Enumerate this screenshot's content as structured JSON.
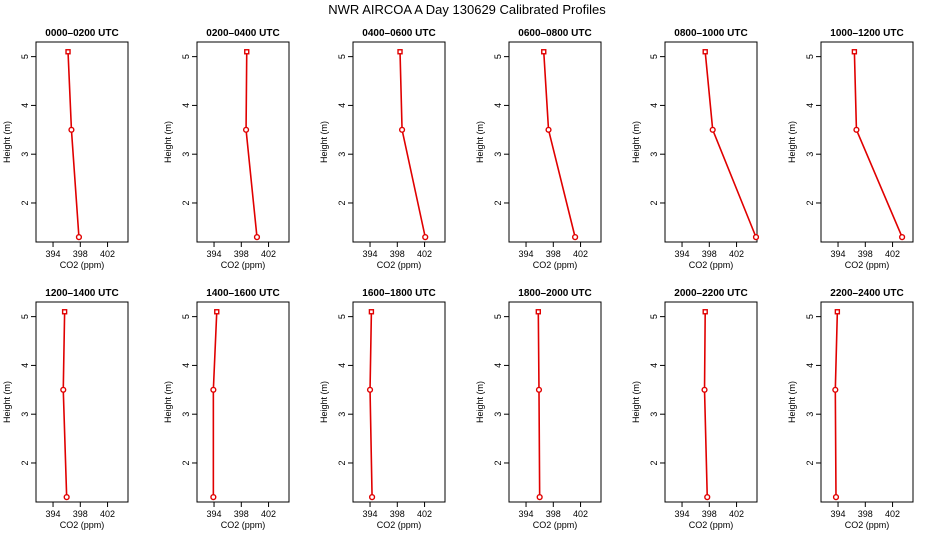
{
  "title": "NWR AIRCOA A  Day 130629  Calibrated Profiles",
  "chart_data": [
    {
      "type": "line",
      "title": "0000–0200 UTC",
      "xlabel": "CO2 (ppm)",
      "ylabel": "Height (m)",
      "xlim": [
        391.5,
        405
      ],
      "ylim": [
        1.2,
        5.3
      ],
      "xticks": [
        394,
        398,
        402
      ],
      "yticks": [
        2,
        3,
        4,
        5
      ],
      "series": [
        {
          "x": [
            396.2,
            396.7,
            397.8
          ],
          "y": [
            5.1,
            3.5,
            1.3
          ]
        }
      ]
    },
    {
      "type": "line",
      "title": "0200–0400 UTC",
      "xlabel": "CO2 (ppm)",
      "ylabel": "Height (m)",
      "xlim": [
        391.5,
        405
      ],
      "ylim": [
        1.2,
        5.3
      ],
      "xticks": [
        394,
        398,
        402
      ],
      "yticks": [
        2,
        3,
        4,
        5
      ],
      "series": [
        {
          "x": [
            398.8,
            398.7,
            400.3
          ],
          "y": [
            5.1,
            3.5,
            1.3
          ]
        }
      ]
    },
    {
      "type": "line",
      "title": "0400–0600 UTC",
      "xlabel": "CO2 (ppm)",
      "ylabel": "Height (m)",
      "xlim": [
        391.5,
        405
      ],
      "ylim": [
        1.2,
        5.3
      ],
      "xticks": [
        394,
        398,
        402
      ],
      "yticks": [
        2,
        3,
        4,
        5
      ],
      "series": [
        {
          "x": [
            398.4,
            398.7,
            402.1
          ],
          "y": [
            5.1,
            3.5,
            1.3
          ]
        }
      ]
    },
    {
      "type": "line",
      "title": "0600–0800 UTC",
      "xlabel": "CO2 (ppm)",
      "ylabel": "Height (m)",
      "xlim": [
        391.5,
        405
      ],
      "ylim": [
        1.2,
        5.3
      ],
      "xticks": [
        394,
        398,
        402
      ],
      "yticks": [
        2,
        3,
        4,
        5
      ],
      "series": [
        {
          "x": [
            396.6,
            397.3,
            401.2
          ],
          "y": [
            5.1,
            3.5,
            1.3
          ]
        }
      ]
    },
    {
      "type": "line",
      "title": "0800–1000 UTC",
      "xlabel": "CO2 (ppm)",
      "ylabel": "Height (m)",
      "xlim": [
        391.5,
        405
      ],
      "ylim": [
        1.2,
        5.3
      ],
      "xticks": [
        394,
        398,
        402
      ],
      "yticks": [
        2,
        3,
        4,
        5
      ],
      "series": [
        {
          "x": [
            397.4,
            398.5,
            405.2
          ],
          "y": [
            5.1,
            3.5,
            1.3
          ]
        }
      ]
    },
    {
      "type": "line",
      "title": "1000–1200 UTC",
      "xlabel": "CO2 (ppm)",
      "ylabel": "Height (m)",
      "xlim": [
        391.5,
        405
      ],
      "ylim": [
        1.2,
        5.3
      ],
      "xticks": [
        394,
        398,
        402
      ],
      "yticks": [
        2,
        3,
        4,
        5
      ],
      "series": [
        {
          "x": [
            396.4,
            396.7,
            403.4
          ],
          "y": [
            5.1,
            3.5,
            1.3
          ]
        }
      ]
    },
    {
      "type": "line",
      "title": "1200–1400 UTC",
      "xlabel": "CO2 (ppm)",
      "ylabel": "Height (m)",
      "xlim": [
        391.5,
        405
      ],
      "ylim": [
        1.2,
        5.3
      ],
      "xticks": [
        394,
        398,
        402
      ],
      "yticks": [
        2,
        3,
        4,
        5
      ],
      "series": [
        {
          "x": [
            395.7,
            395.5,
            396.0
          ],
          "y": [
            5.1,
            3.5,
            1.3
          ]
        }
      ]
    },
    {
      "type": "line",
      "title": "1400–1600 UTC",
      "xlabel": "CO2 (ppm)",
      "ylabel": "Height (m)",
      "xlim": [
        391.5,
        405
      ],
      "ylim": [
        1.2,
        5.3
      ],
      "xticks": [
        394,
        398,
        402
      ],
      "yticks": [
        2,
        3,
        4,
        5
      ],
      "series": [
        {
          "x": [
            394.4,
            393.9,
            393.9
          ],
          "y": [
            5.1,
            3.5,
            1.3
          ]
        }
      ]
    },
    {
      "type": "line",
      "title": "1600–1800 UTC",
      "xlabel": "CO2 (ppm)",
      "ylabel": "Height (m)",
      "xlim": [
        391.5,
        405
      ],
      "ylim": [
        1.2,
        5.3
      ],
      "xticks": [
        394,
        398,
        402
      ],
      "yticks": [
        2,
        3,
        4,
        5
      ],
      "series": [
        {
          "x": [
            394.2,
            394.0,
            394.3
          ],
          "y": [
            5.1,
            3.5,
            1.3
          ]
        }
      ]
    },
    {
      "type": "line",
      "title": "1800–2000 UTC",
      "xlabel": "CO2 (ppm)",
      "ylabel": "Height (m)",
      "xlim": [
        391.5,
        405
      ],
      "ylim": [
        1.2,
        5.3
      ],
      "xticks": [
        394,
        398,
        402
      ],
      "yticks": [
        2,
        3,
        4,
        5
      ],
      "series": [
        {
          "x": [
            395.8,
            395.9,
            396.0
          ],
          "y": [
            5.1,
            3.5,
            1.3
          ]
        }
      ]
    },
    {
      "type": "line",
      "title": "2000–2200 UTC",
      "xlabel": "CO2 (ppm)",
      "ylabel": "Height (m)",
      "xlim": [
        391.5,
        405
      ],
      "ylim": [
        1.2,
        5.3
      ],
      "xticks": [
        394,
        398,
        402
      ],
      "yticks": [
        2,
        3,
        4,
        5
      ],
      "series": [
        {
          "x": [
            397.4,
            397.3,
            397.7
          ],
          "y": [
            5.1,
            3.5,
            1.3
          ]
        }
      ]
    },
    {
      "type": "line",
      "title": "2200–2400 UTC",
      "xlabel": "CO2 (ppm)",
      "ylabel": "Height (m)",
      "xlim": [
        391.5,
        405
      ],
      "ylim": [
        1.2,
        5.3
      ],
      "xticks": [
        394,
        398,
        402
      ],
      "yticks": [
        2,
        3,
        4,
        5
      ],
      "series": [
        {
          "x": [
            393.9,
            393.6,
            393.7
          ],
          "y": [
            5.1,
            3.5,
            1.3
          ]
        }
      ]
    }
  ],
  "colors": {
    "series": "#e00000",
    "marker_fill": "#ffffff",
    "axes": "#000000"
  }
}
